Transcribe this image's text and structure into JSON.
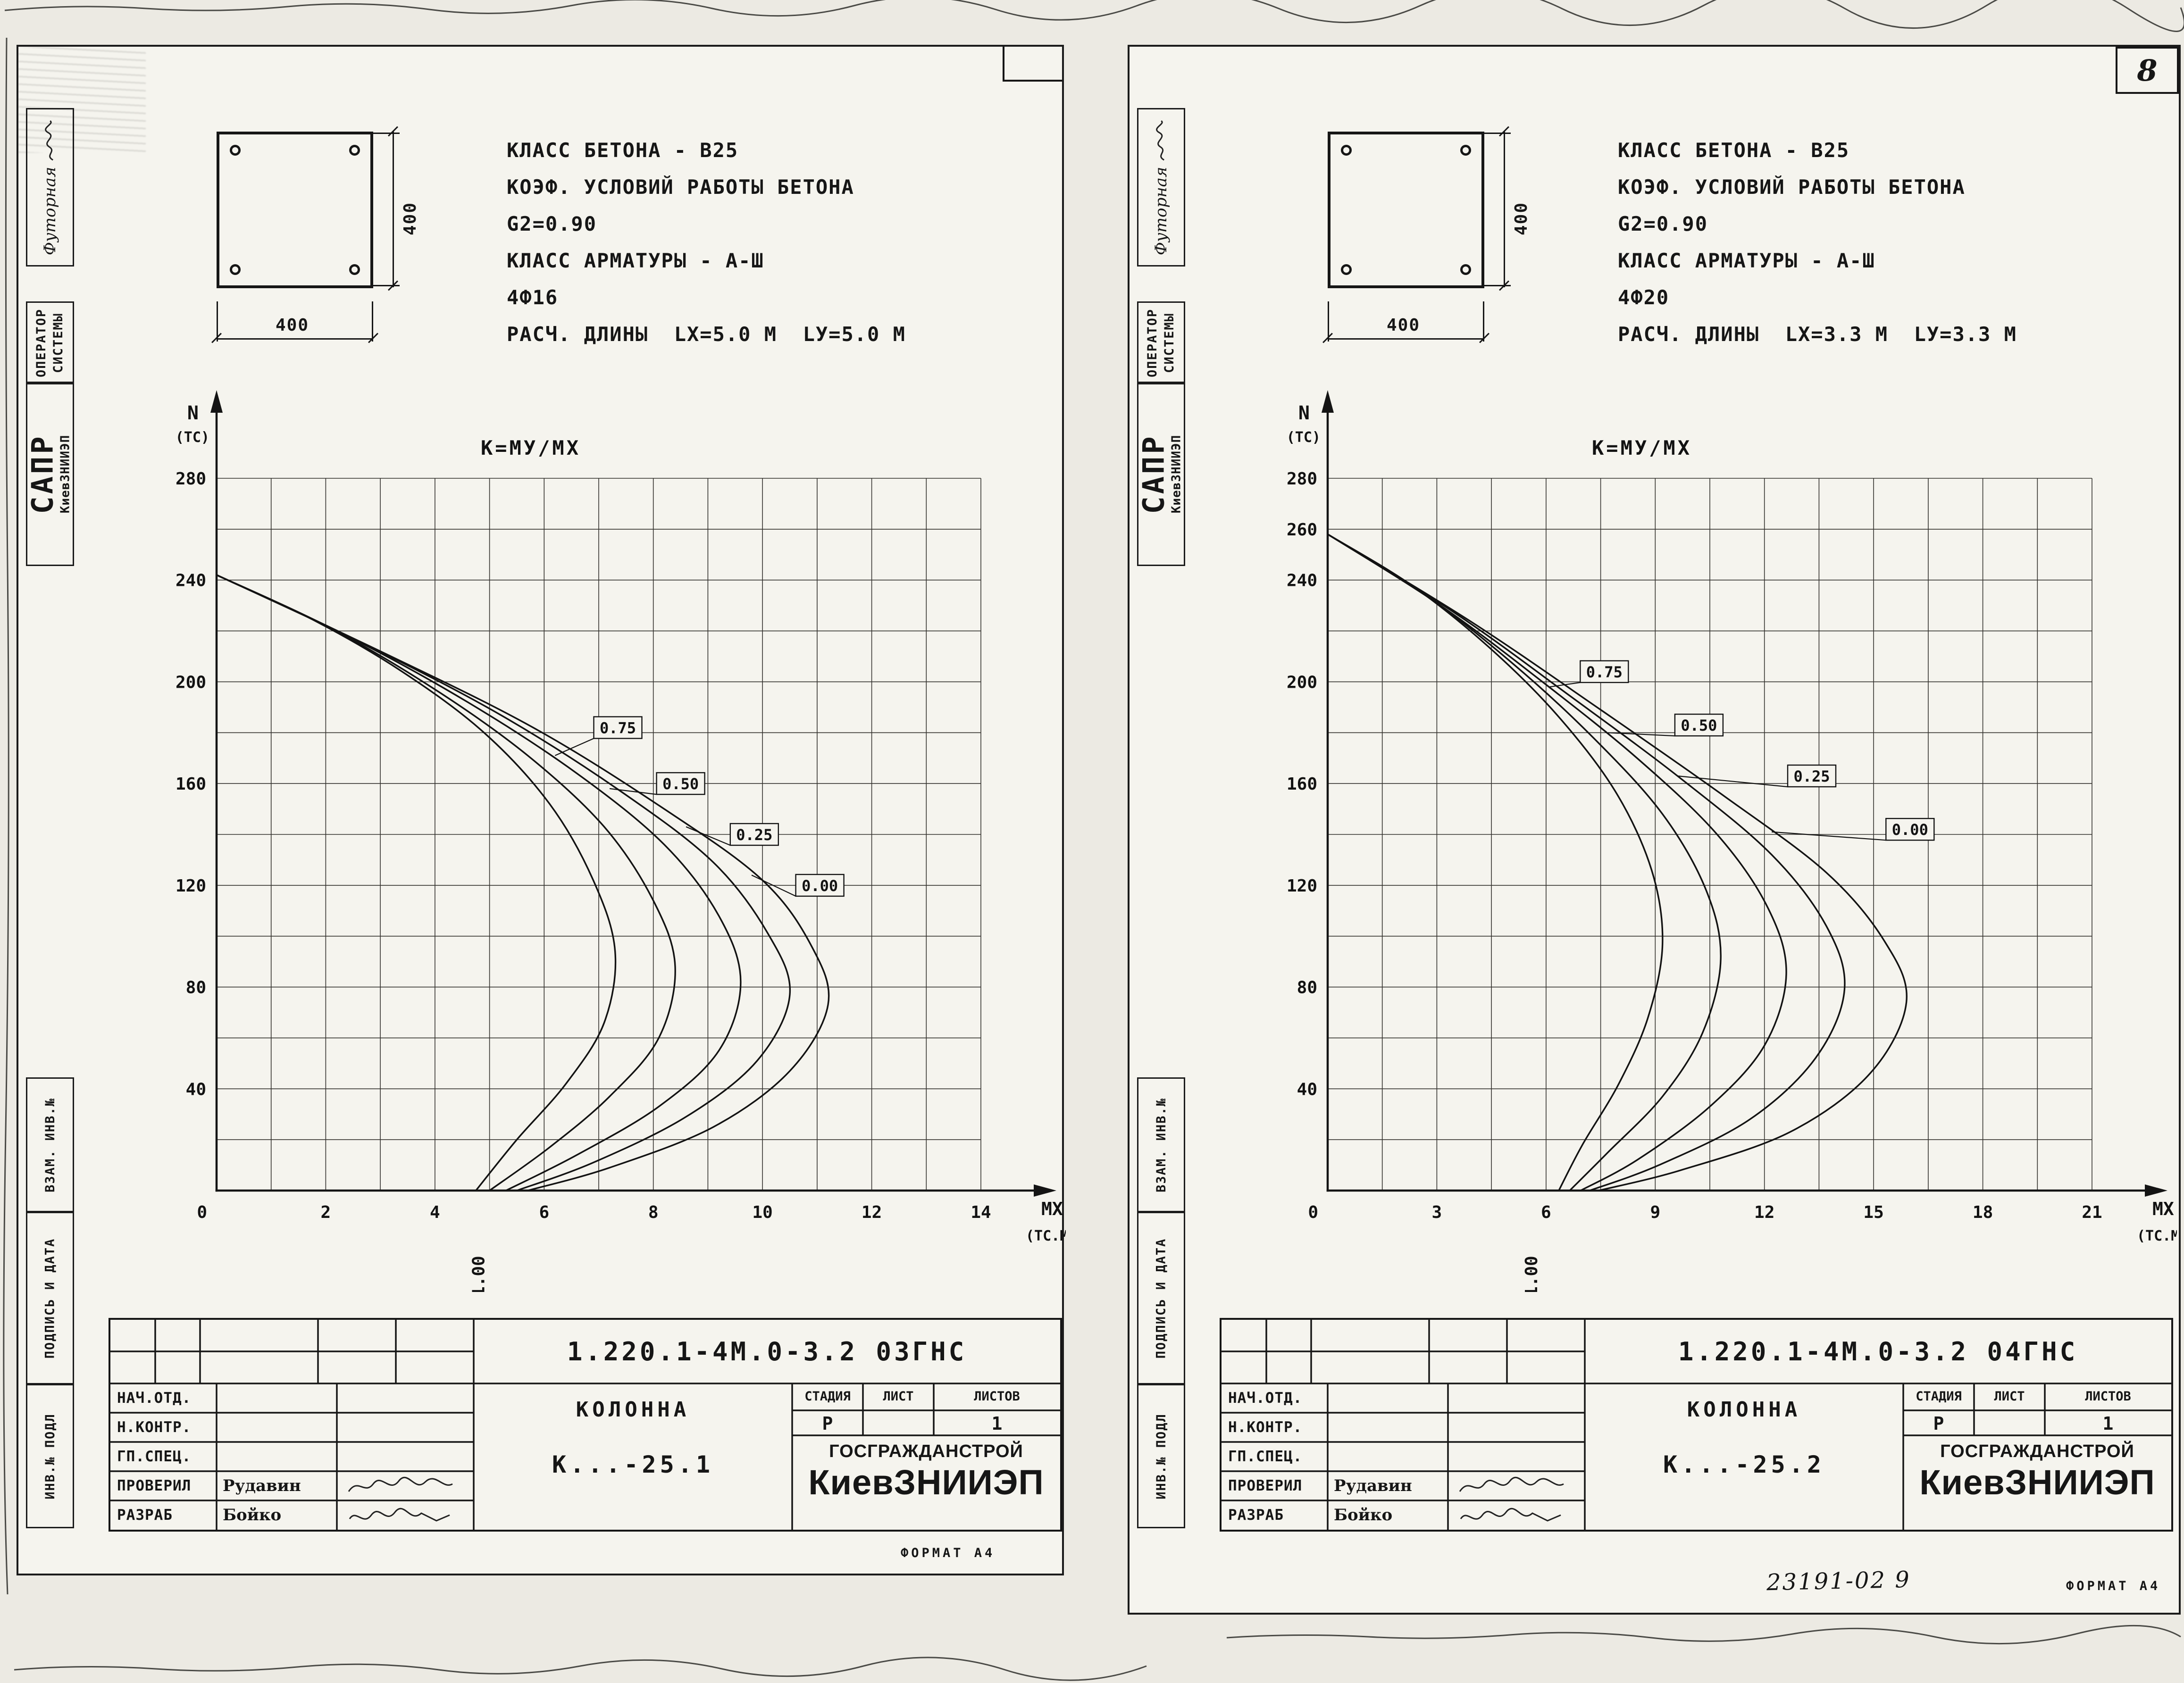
{
  "page": {
    "sheet_number": "8",
    "format_label": "ФОРМАТ А4",
    "handwritten_note": "23191-02   9"
  },
  "margin": {
    "approver": "Футорная",
    "operator_line1": "ОПЕРАТОР",
    "operator_line2": "СИСТЕМЫ",
    "system_name": "САПР",
    "system_org": "КиевЗНИИЭП",
    "vzam": "ВЗАМ. ИНВ.№",
    "podpis": "ПОДПИСЬ И ДАТА",
    "inv": "ИНВ.№ ПОДЛ"
  },
  "stamp_common": {
    "rows": [
      {
        "label": "НАЧ.ОТД.",
        "name": ""
      },
      {
        "label": "Н.КОНТР.",
        "name": ""
      },
      {
        "label": "ГП.СПЕЦ.",
        "name": ""
      },
      {
        "label": "ПРОВЕРИЛ",
        "name": "Рудавин"
      },
      {
        "label": "РАЗРАБ",
        "name": "Бойко"
      }
    ],
    "object_label": "КОЛОННА",
    "stage_headers": [
      "СТАДИЯ",
      "ЛИСТ",
      "ЛИСТОВ"
    ],
    "stage_value": "Р",
    "sheet_value": "",
    "sheets_total": "1",
    "org_line1": "ГОСГРАЖДАНСТРОЙ",
    "org_line2": "КиевЗНИИЭП"
  },
  "sheets": [
    {
      "section": {
        "width": "400",
        "height": "400"
      },
      "specs": [
        "КЛАСС БЕТОНА - В25",
        "КОЭФ. УСЛОВИЙ РАБОТЫ БЕТОНА",
        "G2=0.90",
        "КЛАСС АРМАТУРЫ - А-Ш",
        "4Ф16",
        "РАСЧ. ДЛИНЫ  LX=5.0 М  LУ=5.0 М"
      ],
      "doc_number": "1.220.1-4М.0-3.2 03ГНС",
      "mark": "К...-25.1"
    },
    {
      "section": {
        "width": "400",
        "height": "400"
      },
      "specs": [
        "КЛАСС БЕТОНА - В25",
        "КОЭФ. УСЛОВИЙ РАБОТЫ БЕТОНА",
        "G2=0.90",
        "КЛАСС АРМАТУРЫ - А-Ш",
        "4Ф20",
        "РАСЧ. ДЛИНЫ  LX=3.3 М  LУ=3.3 М"
      ],
      "doc_number": "1.220.1-4М.0-3.2 04ГНС",
      "mark": "К...-25.2"
    }
  ],
  "chart_data": [
    {
      "type": "line",
      "title": "К=МУ/МХ",
      "y_axis_label": "N",
      "y_axis_unit": "(ТС)",
      "x_axis_label": "МХ",
      "x_axis_unit": "(ТС.М)",
      "xlim": [
        0,
        14
      ],
      "ylim": [
        0,
        280
      ],
      "x_grid_step": 1,
      "y_grid_step": 20,
      "x_ticks": [
        0,
        2,
        4,
        6,
        8,
        10,
        12,
        14
      ],
      "y_ticks": [
        40,
        80,
        120,
        160,
        200,
        240,
        280
      ],
      "axis_annotation": {
        "text": "1.00",
        "x": 4.8
      },
      "series": [
        {
          "name": "1.00",
          "points": [
            [
              0,
              242
            ],
            [
              1.8,
              224
            ],
            [
              3.4,
              204
            ],
            [
              4.9,
              180
            ],
            [
              6.1,
              152
            ],
            [
              6.9,
              122
            ],
            [
              7.3,
              94
            ],
            [
              7.1,
              66
            ],
            [
              6.4,
              42
            ],
            [
              5.5,
              20
            ],
            [
              4.75,
              0
            ]
          ]
        },
        {
          "name": "0.75",
          "points": [
            [
              0,
              242
            ],
            [
              2.1,
              221
            ],
            [
              4.0,
              197
            ],
            [
              5.7,
              171
            ],
            [
              7.1,
              143
            ],
            [
              8.0,
              114
            ],
            [
              8.4,
              88
            ],
            [
              8.1,
              60
            ],
            [
              7.2,
              37
            ],
            [
              6.1,
              17
            ],
            [
              5.0,
              0
            ]
          ]
        },
        {
          "name": "0.50",
          "points": [
            [
              0,
              242
            ],
            [
              2.4,
              218
            ],
            [
              4.6,
              192
            ],
            [
              6.6,
              164
            ],
            [
              8.2,
              136
            ],
            [
              9.2,
              108
            ],
            [
              9.6,
              82
            ],
            [
              9.2,
              55
            ],
            [
              8.1,
              33
            ],
            [
              6.6,
              14
            ],
            [
              5.3,
              0
            ]
          ]
        },
        {
          "name": "0.25",
          "points": [
            [
              0,
              242
            ],
            [
              2.7,
              215
            ],
            [
              5.2,
              187
            ],
            [
              7.4,
              157
            ],
            [
              9.1,
              129
            ],
            [
              10.1,
              101
            ],
            [
              10.5,
              77
            ],
            [
              9.9,
              51
            ],
            [
              8.6,
              29
            ],
            [
              6.9,
              11
            ],
            [
              5.5,
              0
            ]
          ]
        },
        {
          "name": "0.00",
          "points": [
            [
              0,
              242
            ],
            [
              3.0,
              212
            ],
            [
              5.8,
              182
            ],
            [
              8.2,
              150
            ],
            [
              10.0,
              122
            ],
            [
              10.9,
              96
            ],
            [
              11.2,
              73
            ],
            [
              10.5,
              47
            ],
            [
              9.1,
              25
            ],
            [
              7.2,
              9
            ],
            [
              5.7,
              0
            ]
          ]
        }
      ],
      "labels": [
        {
          "text": "0.75",
          "x": 7.35,
          "y": 182,
          "leader": [
            6.2,
            171
          ]
        },
        {
          "text": "0.50",
          "x": 8.5,
          "y": 160,
          "leader": [
            7.2,
            158
          ]
        },
        {
          "text": "0.25",
          "x": 9.85,
          "y": 140,
          "leader": [
            8.6,
            143
          ]
        },
        {
          "text": "0.00",
          "x": 11.05,
          "y": 120,
          "leader": [
            9.8,
            124
          ]
        }
      ]
    },
    {
      "type": "line",
      "title": "К=МУ/МХ",
      "y_axis_label": "N",
      "y_axis_unit": "(ТС)",
      "x_axis_label": "МХ",
      "x_axis_unit": "(ТС.М)",
      "xlim": [
        0,
        21
      ],
      "ylim": [
        0,
        280
      ],
      "x_grid_step": 1.5,
      "y_grid_step": 20,
      "x_ticks": [
        0,
        3,
        6,
        9,
        12,
        15,
        18,
        21
      ],
      "y_ticks": [
        40,
        80,
        120,
        160,
        200,
        240,
        260,
        280
      ],
      "axis_annotation": {
        "text": "1.00",
        "x": 5.6
      },
      "series": [
        {
          "name": "1.00",
          "points": [
            [
              0,
              258
            ],
            [
              2.3,
              238
            ],
            [
              4.4,
              214
            ],
            [
              6.3,
              187
            ],
            [
              7.9,
              157
            ],
            [
              8.9,
              126
            ],
            [
              9.2,
              97
            ],
            [
              8.8,
              68
            ],
            [
              8.0,
              42
            ],
            [
              7.0,
              18
            ],
            [
              6.35,
              0
            ]
          ]
        },
        {
          "name": "0.75",
          "points": [
            [
              0,
              258
            ],
            [
              2.7,
              234
            ],
            [
              5.1,
              207
            ],
            [
              7.3,
              178
            ],
            [
              9.2,
              148
            ],
            [
              10.4,
              118
            ],
            [
              10.8,
              91
            ],
            [
              10.3,
              62
            ],
            [
              9.2,
              37
            ],
            [
              7.7,
              15
            ],
            [
              6.65,
              0
            ]
          ]
        },
        {
          "name": "0.50",
          "points": [
            [
              0,
              258
            ],
            [
              3.1,
              230
            ],
            [
              5.9,
              200
            ],
            [
              8.5,
              170
            ],
            [
              10.7,
              140
            ],
            [
              12.1,
              111
            ],
            [
              12.6,
              85
            ],
            [
              12.0,
              57
            ],
            [
              10.5,
              33
            ],
            [
              8.5,
              12
            ],
            [
              6.95,
              0
            ]
          ]
        },
        {
          "name": "0.25",
          "points": [
            [
              0,
              258
            ],
            [
              3.5,
              227
            ],
            [
              6.7,
              194
            ],
            [
              9.7,
              162
            ],
            [
              12.2,
              132
            ],
            [
              13.7,
              104
            ],
            [
              14.2,
              79
            ],
            [
              13.4,
              52
            ],
            [
              11.6,
              28
            ],
            [
              9.1,
              10
            ],
            [
              7.2,
              0
            ]
          ]
        },
        {
          "name": "0.00",
          "points": [
            [
              0,
              258
            ],
            [
              3.9,
              224
            ],
            [
              7.5,
              189
            ],
            [
              10.9,
              155
            ],
            [
              13.7,
              125
            ],
            [
              15.3,
              98
            ],
            [
              15.9,
              74
            ],
            [
              14.9,
              46
            ],
            [
              12.7,
              23
            ],
            [
              9.7,
              8
            ],
            [
              7.45,
              0
            ]
          ]
        }
      ],
      "labels": [
        {
          "text": "0.75",
          "x": 7.6,
          "y": 204,
          "leader": [
            6.1,
            198
          ]
        },
        {
          "text": "0.50",
          "x": 10.2,
          "y": 183,
          "leader": [
            7.7,
            180
          ]
        },
        {
          "text": "0.25",
          "x": 13.3,
          "y": 163,
          "leader": [
            9.6,
            163
          ]
        },
        {
          "text": "0.00",
          "x": 16.0,
          "y": 142,
          "leader": [
            12.2,
            141
          ]
        }
      ]
    }
  ]
}
